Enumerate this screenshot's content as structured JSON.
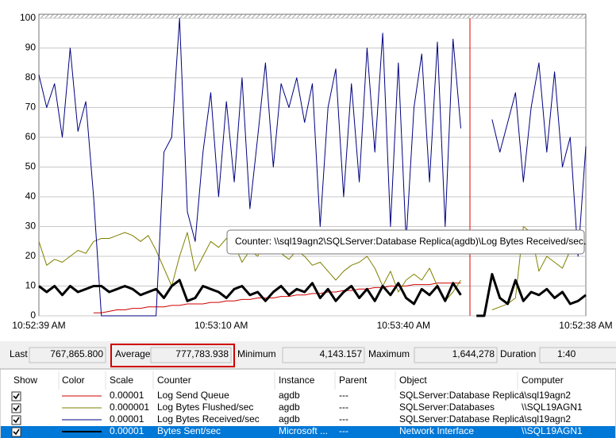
{
  "chart_data": {
    "type": "line",
    "ylim": [
      0,
      100
    ],
    "yticks": [
      0,
      10,
      20,
      30,
      40,
      50,
      60,
      70,
      80,
      90,
      100
    ],
    "grid": true,
    "x_labels": [
      "10:52:39 AM",
      "10:53:10 AM",
      "10:53:40 AM",
      "10:52:38 AM"
    ],
    "series": [
      {
        "name": "Log Send Queue",
        "color": "#d00000",
        "values": [
          null,
          null,
          null,
          null,
          null,
          null,
          null,
          1,
          1,
          1.5,
          2,
          2,
          2.5,
          2.5,
          3,
          3,
          3,
          3.5,
          3.5,
          4,
          4,
          4,
          4.5,
          4.5,
          5,
          5,
          5.5,
          5.5,
          6,
          6,
          6,
          6.5,
          6.5,
          7,
          7,
          7.5,
          7.5,
          8,
          8,
          8.5,
          8.5,
          9,
          9,
          9.5,
          9.5,
          10,
          10,
          10,
          10.5,
          10.5,
          10.5,
          11,
          11,
          11,
          11,
          null,
          null,
          null,
          null,
          null,
          null,
          null,
          null,
          null,
          null,
          null,
          null,
          null,
          null,
          null,
          null
        ]
      },
      {
        "name": "Log Bytes Flushed/sec",
        "color": "#808000",
        "values": [
          25,
          17,
          19,
          18,
          20,
          22,
          21,
          25,
          26,
          26,
          27,
          28,
          27,
          25,
          27,
          22,
          16,
          10,
          20,
          28,
          15,
          20,
          25,
          23,
          26,
          24,
          18,
          22,
          20,
          25,
          23,
          21,
          19,
          22,
          20,
          17,
          18,
          15,
          12,
          15,
          17,
          18,
          20,
          16,
          10,
          15,
          8,
          12,
          14,
          12,
          16,
          10,
          5,
          8,
          12,
          null,
          null,
          null,
          2,
          3,
          4,
          6,
          30,
          28,
          15,
          20,
          18,
          16,
          22,
          25,
          24
        ]
      },
      {
        "name": "Log Bytes Received/sec",
        "color": "#000080",
        "values": [
          81,
          70,
          78,
          60,
          90,
          62,
          72,
          40,
          0,
          0,
          0,
          0,
          0,
          0,
          0,
          0,
          55,
          60,
          100,
          35,
          25,
          55,
          75,
          40,
          72,
          45,
          80,
          36,
          60,
          85,
          50,
          78,
          70,
          80,
          65,
          78,
          30,
          70,
          83,
          40,
          78,
          45,
          90,
          55,
          95,
          30,
          85,
          25,
          70,
          88,
          45,
          92,
          30,
          93,
          63,
          null,
          null,
          null,
          66,
          55,
          65,
          75,
          45,
          70,
          85,
          55,
          82,
          50,
          60,
          20,
          57
        ]
      },
      {
        "name": "Bytes Sent/sec",
        "color": "#000000",
        "values": [
          10,
          8,
          10,
          7,
          10,
          8,
          9,
          10,
          10,
          8,
          9,
          10,
          9,
          7,
          8,
          9,
          6,
          10,
          12,
          5,
          6,
          10,
          9,
          8,
          6,
          9,
          10,
          7,
          8,
          5,
          8,
          10,
          7,
          9,
          8,
          11,
          6,
          9,
          5,
          8,
          10,
          6,
          9,
          5,
          10,
          7,
          11,
          6,
          4,
          9,
          7,
          10,
          5,
          11,
          7,
          null,
          0,
          0,
          14,
          6,
          4,
          12,
          5,
          8,
          7,
          9,
          6,
          8,
          4,
          5,
          7
        ]
      }
    ]
  },
  "tooltip": "Counter: \\\\sql19agn2\\SQLServer:Database Replica(agdb)\\Log Bytes Received/sec.",
  "stats": [
    {
      "label": "Last",
      "value": "767,865.800"
    },
    {
      "label": "Average",
      "value": "777,783.938"
    },
    {
      "label": "Minimum",
      "value": "4,143.157"
    },
    {
      "label": "Maximum",
      "value": "1,644,278"
    },
    {
      "label": "Duration",
      "value": "1:40"
    }
  ],
  "table": {
    "columns": [
      "Show",
      "Color",
      "Scale",
      "Counter",
      "Instance",
      "Parent",
      "Object",
      "Computer"
    ],
    "rows": [
      [
        "0.00001",
        "agdb",
        "---",
        "SQLServer:Database Replica",
        "\\\\sql19agn2"
      ],
      [
        "0.000001",
        "agdb",
        "---",
        "SQLServer:Databases",
        "\\\\SQL19AGN1"
      ],
      [
        "0.00001",
        "agdb",
        "---",
        "SQLServer:Database Replica",
        "\\\\sql19agn2"
      ],
      [
        "0.00001",
        "Microsoft ...",
        "---",
        "Network Interface",
        "\\\\SQL19AGN1"
      ]
    ]
  }
}
